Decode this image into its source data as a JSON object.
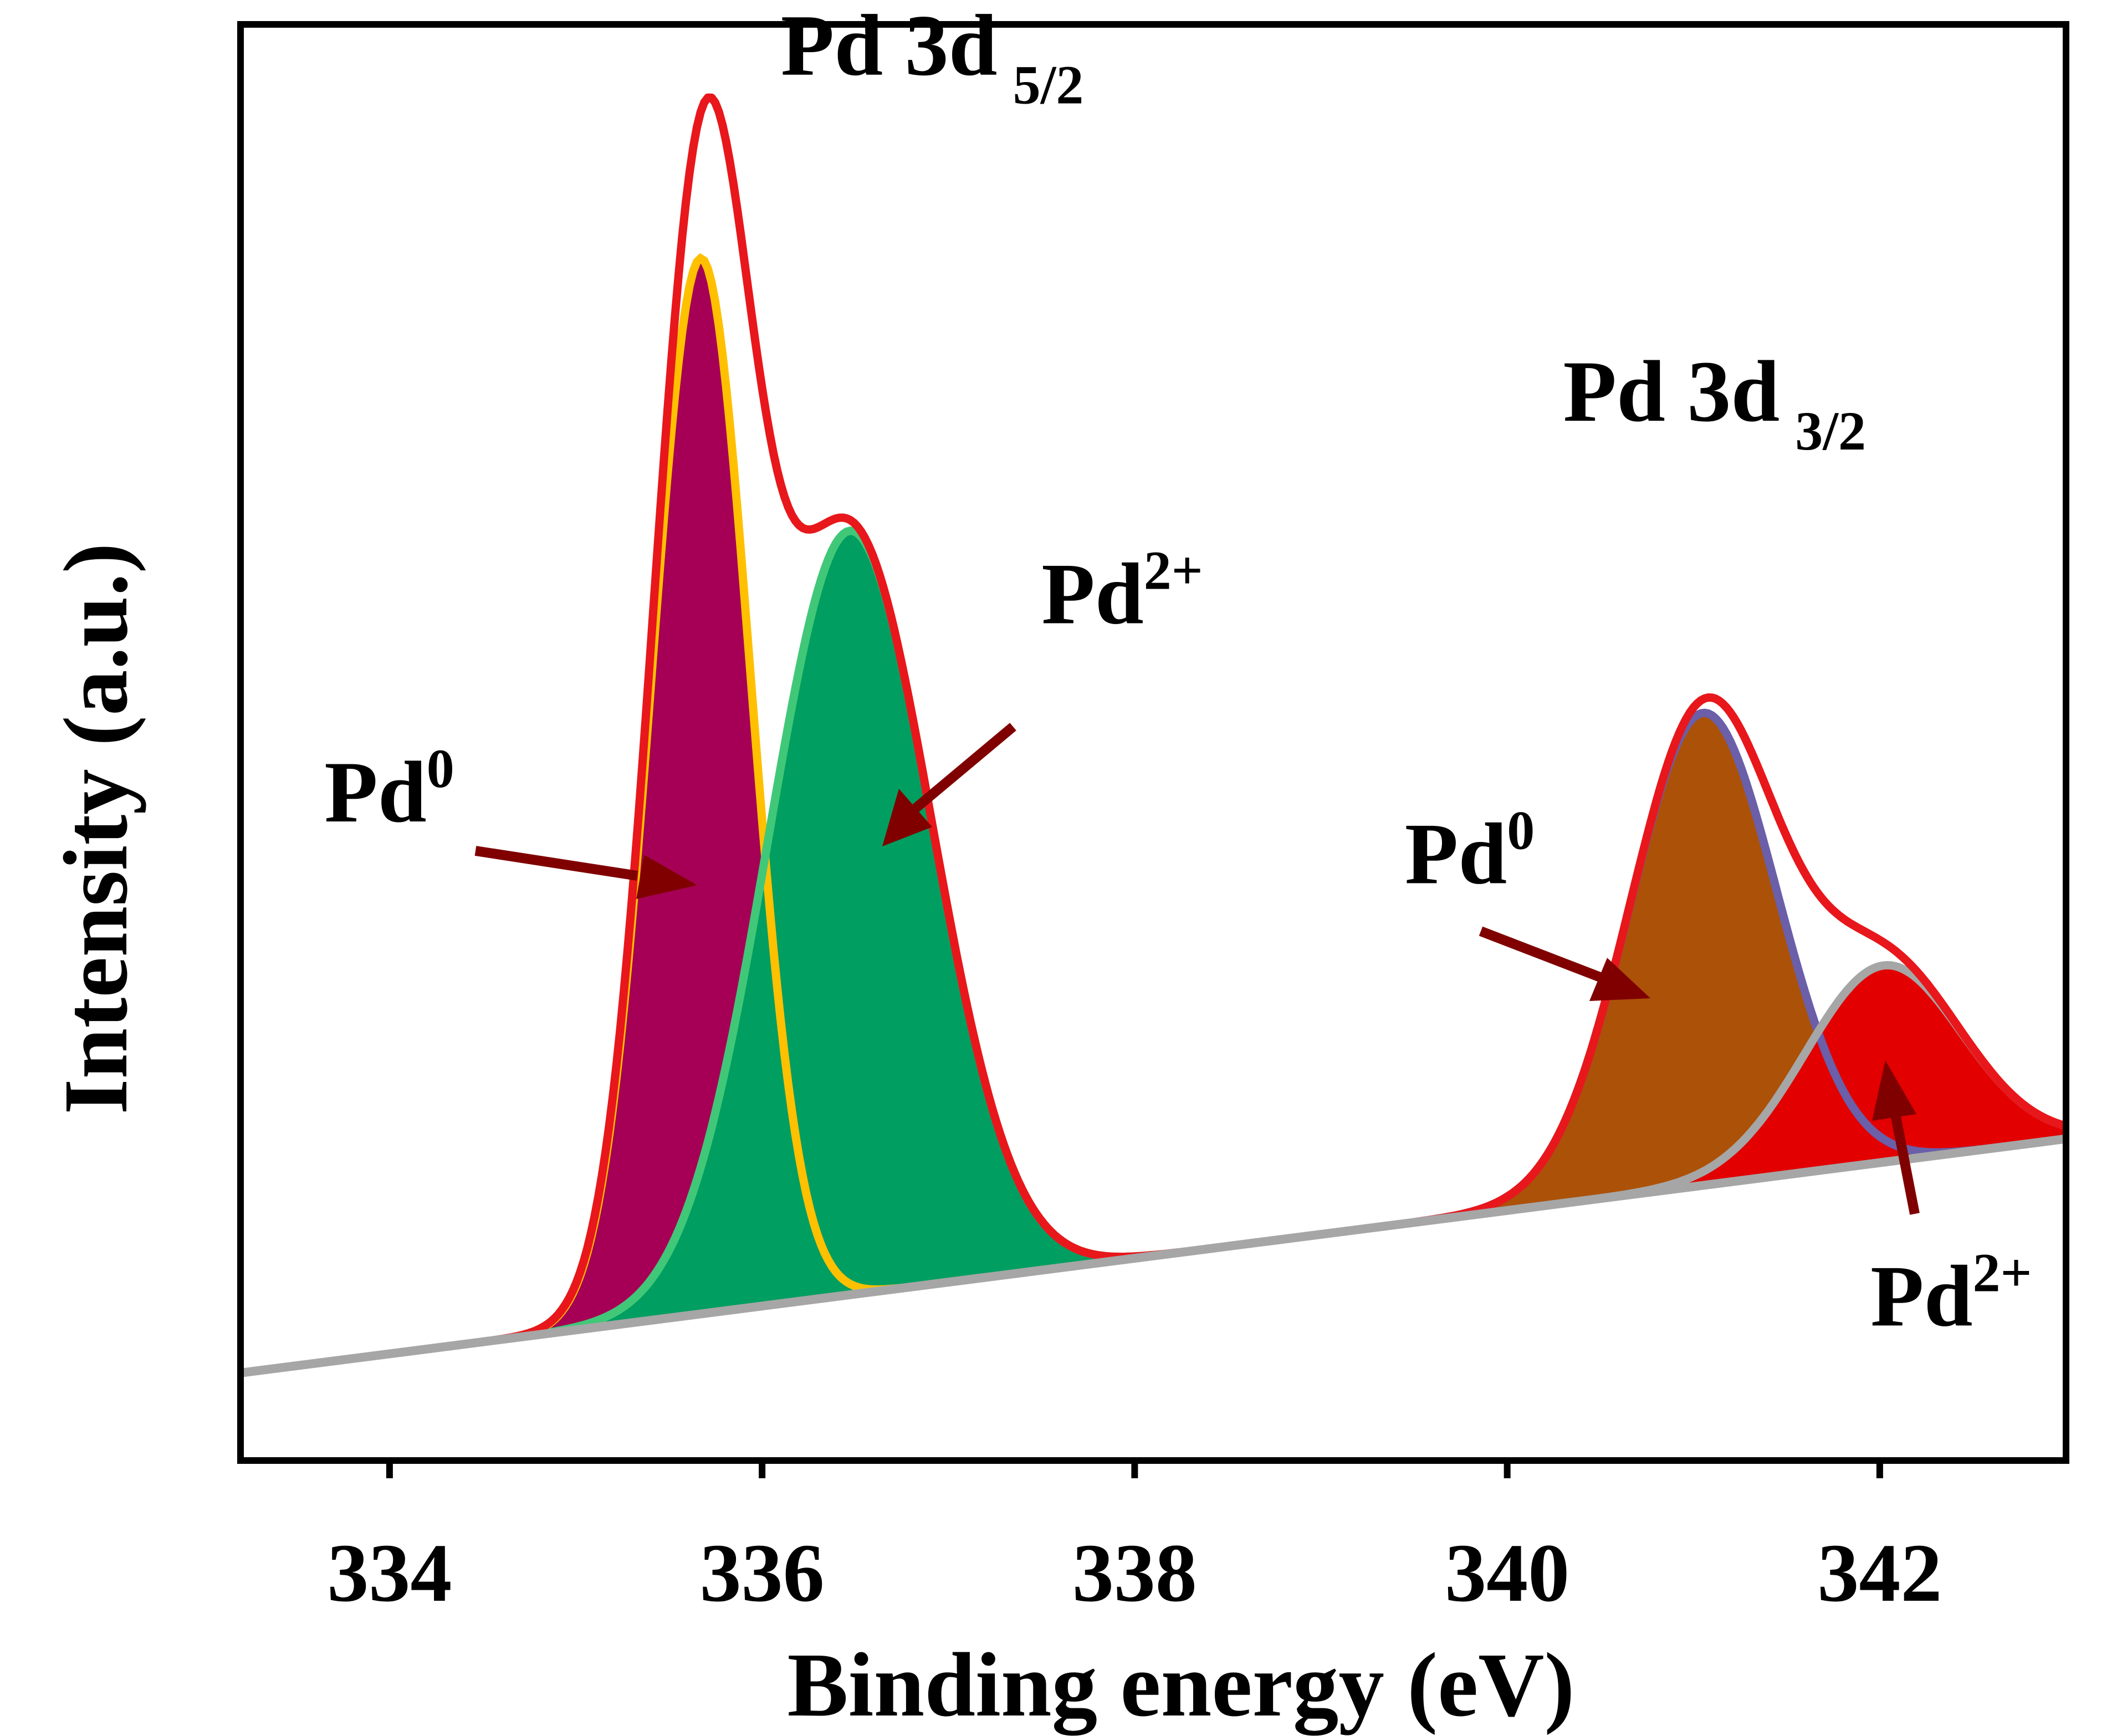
{
  "chart_data": {
    "type": "line",
    "title": "",
    "xlabel": "Binding energy (eV)",
    "ylabel": "Intensity (a.u.)",
    "xlim": [
      333.2,
      343.0
    ],
    "ylim": [
      0,
      100
    ],
    "xticks": [
      334,
      336,
      338,
      340,
      342
    ],
    "grid": false,
    "legend": "none",
    "background": {
      "x0": 333.2,
      "y0": 6.1,
      "x1": 343.0,
      "y1": 22.4
    },
    "peaks": [
      {
        "name": "Pd0 3d5/2",
        "center": 335.67,
        "height": 73.5,
        "sigma": 0.265,
        "fill": "#a50055",
        "stroke": "#ffc000"
      },
      {
        "name": "Pd2+ 3d5/2",
        "center": 336.47,
        "height": 53.2,
        "sigma": 0.44,
        "fill": "#009e60",
        "stroke": "#40c878"
      },
      {
        "name": "Pd0 3d3/2",
        "center": 341.05,
        "height": 32.9,
        "sigma": 0.395,
        "fill": "#ac5108",
        "stroke": "#6a5fa8"
      },
      {
        "name": "Pd2+ 3d3/2",
        "center": 342.02,
        "height": 13.7,
        "sigma": 0.42,
        "fill": "#e20000",
        "stroke": "#a6a6a6"
      }
    ],
    "envelope": {
      "name": "Envelope fit",
      "color": "#e8171b"
    },
    "annotations": [
      {
        "text": "Pd 3d",
        "subscript": "5/2",
        "x": 336.1,
        "y": 96.5
      },
      {
        "text": "Pd 3d",
        "subscript": "3/2",
        "x": 340.3,
        "y": 72.4
      },
      {
        "text": "Pd",
        "superscript": "2+",
        "x": 337.5,
        "y": 58.3
      },
      {
        "text": "Pd",
        "superscript": "0",
        "x": 333.65,
        "y": 44.5
      },
      {
        "text": "Pd",
        "superscript": "0",
        "x": 339.45,
        "y": 40.2
      },
      {
        "text": "Pd",
        "superscript": "2+",
        "x": 341.95,
        "y": 9.4
      }
    ]
  }
}
